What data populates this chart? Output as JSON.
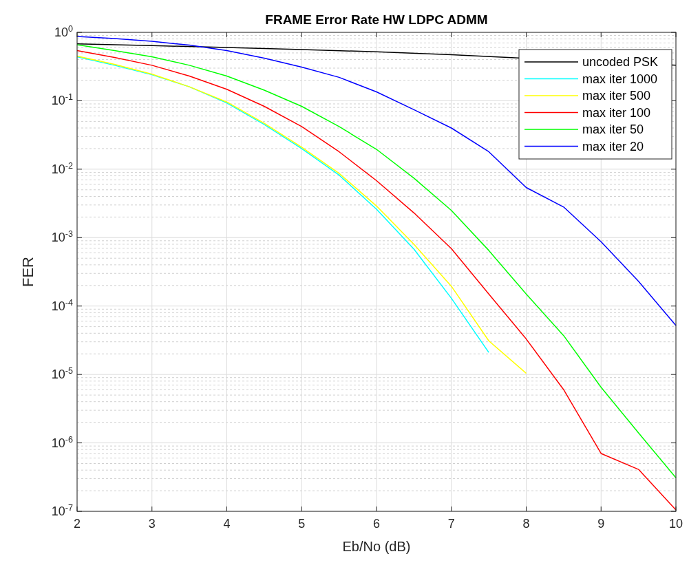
{
  "chart_data": {
    "type": "line",
    "title": "FRAME Error Rate HW LDPC ADMM",
    "xlabel": "Eb/No (dB)",
    "ylabel": "FER",
    "log": "y",
    "grid": true,
    "legend": "top right",
    "line_style": "solid",
    "marker": "none",
    "xlim": [
      2,
      10
    ],
    "xticks": [
      2,
      3,
      4,
      5,
      6,
      7,
      8,
      9,
      10
    ],
    "ylim": [
      1e-07,
      1
    ],
    "yticks": [
      {
        "value": 1e-07,
        "label": "10$^{-7}$"
      },
      {
        "value": 1e-06,
        "label": "10$^{-6}$"
      },
      {
        "value": 1e-05,
        "label": "10$^{-5}$"
      },
      {
        "value": 0.0001,
        "label": "10$^{-4}$"
      },
      {
        "value": 0.001,
        "label": "10$^{-3}$"
      },
      {
        "value": 0.01,
        "label": "10$^{-2}$"
      },
      {
        "value": 0.1,
        "label": "10$^{-1}$"
      },
      {
        "value": 1,
        "label": "10$^{0}$"
      }
    ],
    "series": [
      {
        "name": "uncoded PSK",
        "color": "#000000",
        "x": [
          2,
          3,
          4,
          5,
          6,
          7,
          10
        ],
        "values": [
          0.68,
          0.64,
          0.6,
          0.56,
          0.52,
          0.47,
          0.33
        ]
      },
      {
        "name": "max iter 1000",
        "color": "#00ffff",
        "x": [
          2,
          2.5,
          3,
          3.5,
          4,
          4.5,
          5,
          5.5,
          6,
          6.5,
          7,
          7.5
        ],
        "values": [
          0.44,
          0.33,
          0.24,
          0.16,
          0.093,
          0.045,
          0.02,
          0.0082,
          0.0026,
          0.00068,
          0.00013,
          2.1e-05
        ]
      },
      {
        "name": "max iter 500",
        "color": "#ffff00",
        "x": [
          2,
          2.5,
          3,
          3.5,
          4,
          4.5,
          5,
          5.5,
          6,
          6.5,
          7,
          7.5,
          8
        ],
        "values": [
          0.45,
          0.34,
          0.245,
          0.16,
          0.096,
          0.047,
          0.021,
          0.0087,
          0.0029,
          0.0008,
          0.000195,
          3.1e-05,
          1.04e-05
        ]
      },
      {
        "name": "max iter 100",
        "color": "#ff0000",
        "x": [
          2,
          2.5,
          3,
          3.5,
          4,
          4.5,
          5,
          5.5,
          6,
          6.5,
          7,
          7.5,
          8,
          8.5,
          9,
          9.5,
          10
        ],
        "values": [
          0.54,
          0.43,
          0.33,
          0.23,
          0.147,
          0.083,
          0.042,
          0.018,
          0.0068,
          0.0023,
          0.00069,
          0.00015,
          3.3e-05,
          6e-06,
          7e-07,
          4.1e-07,
          1.05e-07
        ]
      },
      {
        "name": "max iter 50",
        "color": "#00ff00",
        "x": [
          2,
          2.5,
          3,
          3.5,
          4,
          4.5,
          5,
          5.5,
          6,
          6.5,
          7,
          7.5,
          8,
          8.5,
          9,
          9.5,
          10
        ],
        "values": [
          0.66,
          0.54,
          0.44,
          0.33,
          0.23,
          0.143,
          0.083,
          0.042,
          0.0195,
          0.0074,
          0.0025,
          0.00065,
          0.00015,
          3.7e-05,
          6.5e-06,
          1.4e-06,
          3.1e-07
        ]
      },
      {
        "name": "max iter 20",
        "color": "#0000ff",
        "x": [
          2,
          2.5,
          3,
          3.5,
          4,
          4.5,
          5,
          5.5,
          6,
          6.5,
          7,
          7.5,
          8,
          8.5,
          9,
          9.5,
          10
        ],
        "values": [
          0.87,
          0.81,
          0.74,
          0.65,
          0.54,
          0.42,
          0.31,
          0.22,
          0.135,
          0.074,
          0.04,
          0.018,
          0.0054,
          0.0028,
          0.00087,
          0.00023,
          5.2e-05
        ]
      }
    ]
  }
}
